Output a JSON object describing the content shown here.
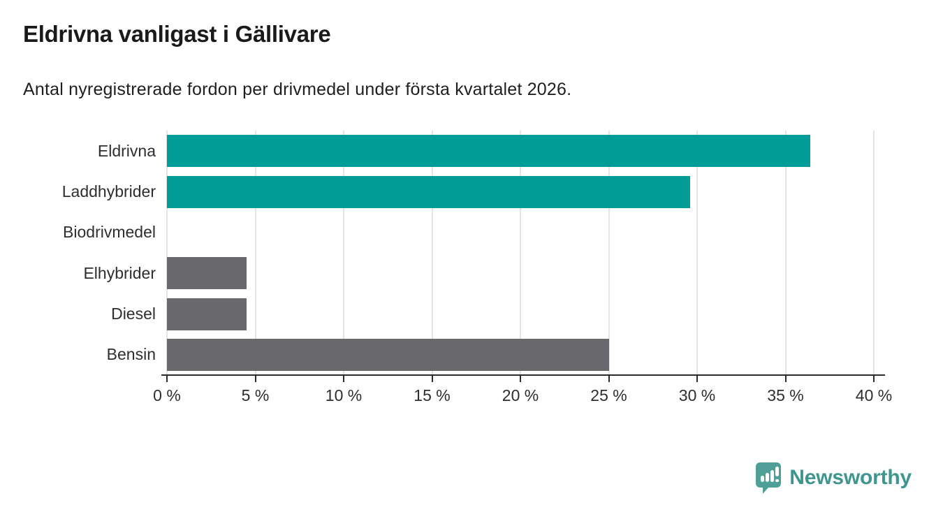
{
  "chart_data": {
    "type": "bar",
    "orientation": "horizontal",
    "title": "Eldrivna vanligast i Gällivare",
    "subtitle": "Antal nyregistrerade fordon per drivmedel under första kvartalet 2026.",
    "categories": [
      "Eldrivna",
      "Laddhybrider",
      "Biodrivmedel",
      "Elhybrider",
      "Diesel",
      "Bensin"
    ],
    "values": [
      36.4,
      29.6,
      0,
      4.5,
      4.5,
      25.0
    ],
    "unit": "%",
    "xlabel": "",
    "ylabel": "",
    "xlim": [
      0,
      40
    ],
    "x_ticks": [
      "0 %",
      "5 %",
      "10 %",
      "15 %",
      "20 %",
      "25 %",
      "30 %",
      "35 %",
      "40 %"
    ],
    "grid": true,
    "legend": false,
    "bar_colors": [
      "#009c95",
      "#009c95",
      "#009c95",
      "#6a6a6e",
      "#6a6a6e",
      "#6a6a6e"
    ]
  },
  "branding": {
    "name": "Newsworthy",
    "text_color": "#3f968f",
    "icon": "newsworthy-speech-bubble-bar-chart-icon",
    "icon_color": "#4f9e98"
  },
  "style": {
    "grid_color": "#e4e4e4",
    "axis_color": "#2b2b2b",
    "label_color": "#2e2e2e",
    "teal": "#009c95",
    "gray": "#6a6a6e"
  }
}
